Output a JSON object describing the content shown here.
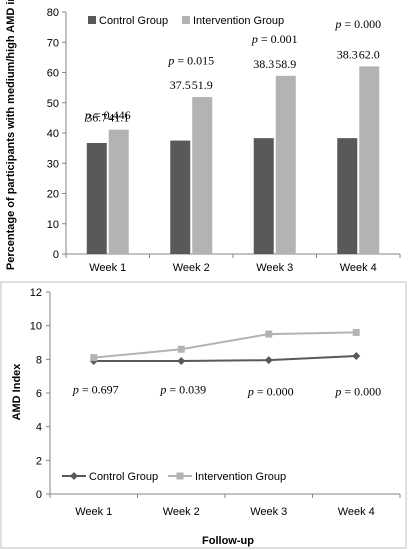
{
  "chart_data": [
    {
      "type": "bar",
      "title": "",
      "xlabel": "",
      "ylabel": "Percentage of participants with medium/high AMD index",
      "ylim": [
        0,
        80
      ],
      "yticks": [
        0,
        10,
        20,
        30,
        40,
        50,
        60,
        70,
        80
      ],
      "categories": [
        "Week 1",
        "Week 2",
        "Week 3",
        "Week 4"
      ],
      "series": [
        {
          "name": "Control Group",
          "color": "#595959",
          "values": [
            36.7,
            37.5,
            38.3,
            38.3
          ],
          "labels": [
            "36.7",
            "37.5",
            "38.3",
            "38.3"
          ]
        },
        {
          "name": "Intervention Group",
          "color": "#b3b3b3",
          "values": [
            41.1,
            51.9,
            58.9,
            62.0
          ],
          "labels": [
            "41.1",
            "51.9",
            "58.9",
            "62.0"
          ]
        }
      ],
      "annotations": [
        {
          "category": "Week 1",
          "p_label": "p",
          "p_value": " = 0.446",
          "y": 46
        },
        {
          "category": "Week 2",
          "p_label": "p",
          "p_value": " = 0.015",
          "y": 64
        },
        {
          "category": "Week 3",
          "p_label": "p",
          "p_value": " = 0.001",
          "y": 71
        },
        {
          "category": "Week 4",
          "p_label": "p",
          "p_value": " = 0.000",
          "y": 76
        }
      ],
      "grid": false,
      "legend": "top"
    },
    {
      "type": "line",
      "title": "",
      "xlabel": "Follow-up",
      "ylabel": "AMD Index",
      "ylim": [
        0,
        12
      ],
      "yticks": [
        0,
        2,
        4,
        6,
        8,
        10,
        12
      ],
      "categories": [
        "Week 1",
        "Week 2",
        "Week 3",
        "Week 4"
      ],
      "series": [
        {
          "name": "Control Group",
          "color": "#595959",
          "marker": "diamond",
          "values": [
            7.9,
            7.9,
            7.95,
            8.2
          ]
        },
        {
          "name": "Intervention Group",
          "color": "#b3b3b3",
          "marker": "square",
          "values": [
            8.1,
            8.6,
            9.5,
            9.6
          ]
        }
      ],
      "annotations": [
        {
          "category": "Week 1",
          "p_label": "p",
          "p_value": " = 0.697",
          "y": 6.2
        },
        {
          "category": "Week 2",
          "p_label": "p",
          "p_value": " = 0.039",
          "y": 6.2
        },
        {
          "category": "Week 3",
          "p_label": "p",
          "p_value": " = 0.000",
          "y": 6.1
        },
        {
          "category": "Week 4",
          "p_label": "p",
          "p_value": " = 0.000",
          "y": 6.1
        }
      ],
      "grid": false,
      "legend": "bottom-left inside"
    }
  ]
}
